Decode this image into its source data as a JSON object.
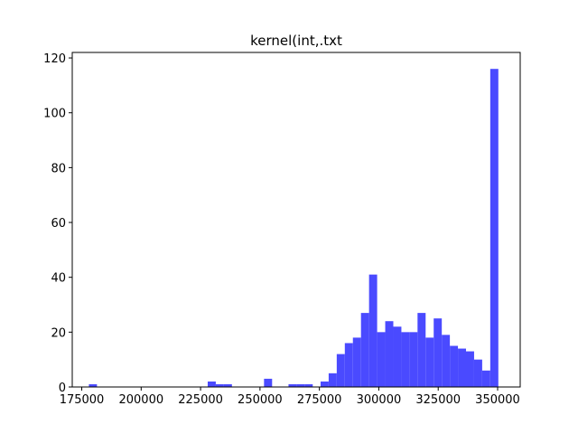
{
  "chart_data": {
    "type": "bar",
    "title": "kernel(int,.txt",
    "xlabel": "",
    "ylabel": "",
    "bar_color": "#4a4aff",
    "grid": false,
    "xlim": [
      171000,
      359500
    ],
    "ylim": [
      0,
      122
    ],
    "xticks": [
      175000,
      200000,
      225000,
      250000,
      275000,
      300000,
      325000,
      350000
    ],
    "yticks": [
      0,
      20,
      40,
      60,
      80,
      100,
      120
    ],
    "bin_width": 3400,
    "bins": [
      {
        "x0": 178000,
        "count": 1
      },
      {
        "x0": 228000,
        "count": 2
      },
      {
        "x0": 231400,
        "count": 1
      },
      {
        "x0": 234800,
        "count": 1
      },
      {
        "x0": 251700,
        "count": 3
      },
      {
        "x0": 262000,
        "count": 1
      },
      {
        "x0": 265400,
        "count": 1
      },
      {
        "x0": 268800,
        "count": 1
      },
      {
        "x0": 275500,
        "count": 2
      },
      {
        "x0": 278900,
        "count": 5
      },
      {
        "x0": 282300,
        "count": 12
      },
      {
        "x0": 285700,
        "count": 16
      },
      {
        "x0": 289100,
        "count": 18
      },
      {
        "x0": 292500,
        "count": 27
      },
      {
        "x0": 295900,
        "count": 41
      },
      {
        "x0": 299300,
        "count": 20
      },
      {
        "x0": 302700,
        "count": 24
      },
      {
        "x0": 306100,
        "count": 22
      },
      {
        "x0": 309500,
        "count": 20
      },
      {
        "x0": 312900,
        "count": 20
      },
      {
        "x0": 316300,
        "count": 27
      },
      {
        "x0": 319700,
        "count": 18
      },
      {
        "x0": 323100,
        "count": 25
      },
      {
        "x0": 326500,
        "count": 19
      },
      {
        "x0": 329900,
        "count": 15
      },
      {
        "x0": 333300,
        "count": 14
      },
      {
        "x0": 336700,
        "count": 13
      },
      {
        "x0": 340100,
        "count": 10
      },
      {
        "x0": 343500,
        "count": 6
      },
      {
        "x0": 346900,
        "count": 116
      }
    ]
  }
}
